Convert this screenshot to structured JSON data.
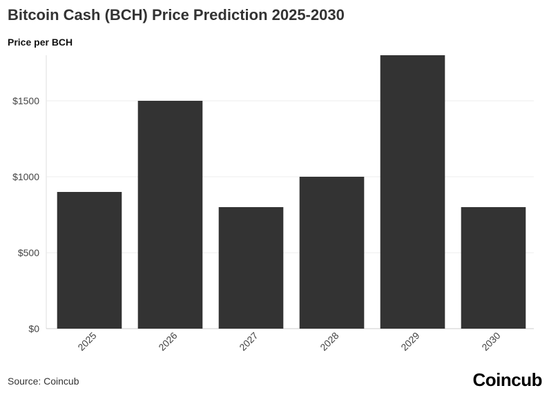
{
  "header": {
    "title": "Bitcoin Cash (BCH) Price Prediction 2025-2030",
    "subtitle": "Price per BCH"
  },
  "footer": {
    "source": "Source: Coincub",
    "brand": "Coincub"
  },
  "chart_data": {
    "type": "bar",
    "title": "Bitcoin Cash (BCH) Price Prediction 2025-2030",
    "ylabel": "Price per BCH",
    "xlabel": "",
    "categories": [
      "2025",
      "2026",
      "2027",
      "2028",
      "2029",
      "2030"
    ],
    "values": [
      900,
      1500,
      800,
      1000,
      1800,
      800
    ],
    "ylim": [
      0,
      1800
    ],
    "yticks": [
      0,
      500,
      1000,
      1500
    ],
    "ytick_labels": [
      "$0",
      "$500",
      "$1000",
      "$1500"
    ],
    "grid": true,
    "bar_color": "#333333"
  }
}
